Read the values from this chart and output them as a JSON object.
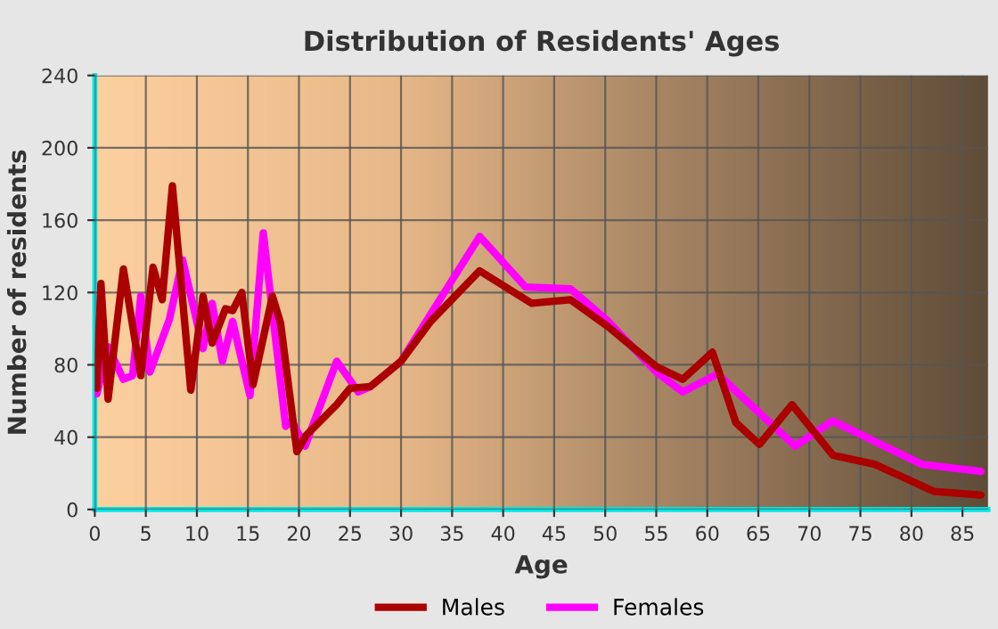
{
  "chart_data": {
    "type": "line",
    "title": "Distribution of Residents' Ages",
    "xlabel": "Age",
    "ylabel": "Number of residents",
    "xlim": [
      0,
      87.5
    ],
    "ylim": [
      0,
      240
    ],
    "xticks": [
      0,
      5,
      10,
      15,
      20,
      25,
      30,
      35,
      40,
      45,
      50,
      55,
      60,
      65,
      70,
      75,
      80,
      85
    ],
    "yticks": [
      0,
      40,
      80,
      120,
      160,
      200,
      240
    ],
    "grid": true,
    "legend": "bottom",
    "line_style": "solid",
    "marker": "none",
    "series": [
      {
        "name": "Males",
        "color": "#aa0000",
        "x": [
          0.2,
          0.6,
          1.3,
          2.8,
          4.5,
          5.7,
          6.6,
          7.6,
          9.4,
          10.6,
          11.5,
          12.8,
          13.5,
          14.4,
          15.5,
          17.4,
          18.2,
          19.8,
          20.7,
          23.7,
          25,
          27,
          30,
          32.9,
          37.7,
          42.8,
          46.6,
          50.3,
          55,
          57.6,
          60.5,
          62.8,
          65.1,
          68.3,
          72.3,
          76.4,
          82.2,
          86.8
        ],
        "values": [
          67,
          125,
          61,
          133,
          74,
          134,
          116,
          179,
          66,
          118,
          92,
          111,
          110,
          120,
          69,
          118,
          103,
          32,
          41,
          58,
          67,
          68,
          82,
          104,
          132,
          114,
          116,
          101,
          79,
          72,
          87,
          48,
          36,
          58,
          30,
          25,
          10,
          8
        ]
      },
      {
        "name": "Females",
        "color": "#ff00ff",
        "x": [
          0.2,
          1.3,
          2.8,
          3.7,
          4.5,
          5.4,
          7.3,
          8.6,
          10.6,
          11.5,
          12.5,
          13.5,
          15.2,
          16.5,
          18.7,
          19.3,
          20.6,
          23.7,
          25.8,
          27,
          30,
          37.7,
          42.2,
          46.6,
          50.3,
          55,
          57.6,
          61,
          68.6,
          72.3,
          81,
          86.8
        ],
        "values": [
          64,
          90,
          72,
          74,
          118,
          76,
          105,
          138,
          89,
          114,
          82,
          104,
          63,
          153,
          46,
          49,
          35,
          82,
          65,
          68,
          82,
          151,
          123,
          122,
          104,
          76,
          65,
          75,
          35,
          49,
          25,
          21
        ]
      }
    ]
  }
}
